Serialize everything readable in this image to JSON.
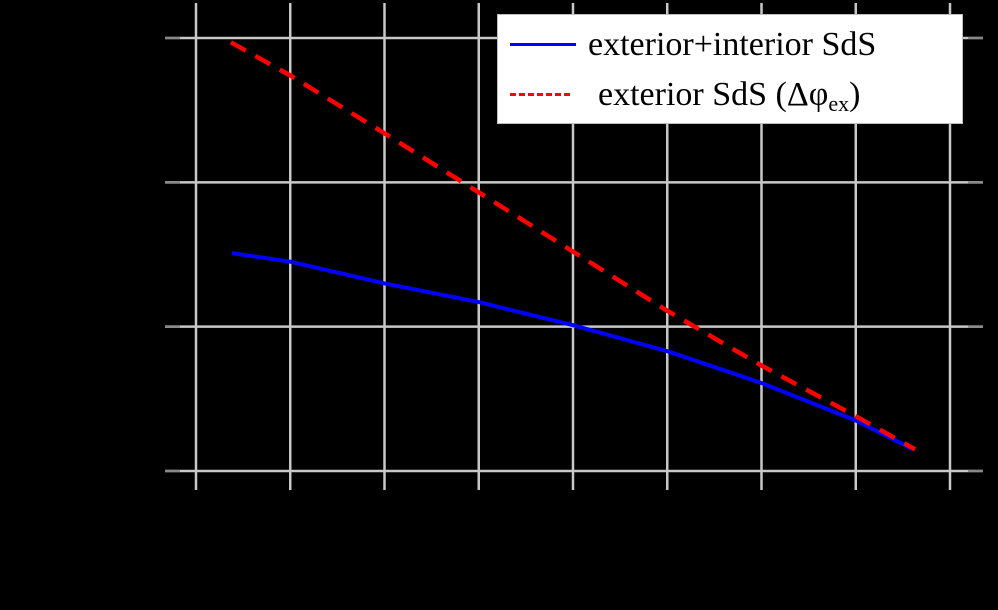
{
  "chart_data": {
    "type": "line",
    "title": "",
    "xlabel": "",
    "ylabel": "",
    "x_tick_labels": [],
    "y_tick_labels": [],
    "note": "Axis tick labels and axis titles are rendered black-on-black (not visible). Values are expressed in grid units: x = vertical gridline index (0-8), y = horizontal gridline index from bottom (0-3).",
    "grid": true,
    "xlim": [
      -0.33,
      8.35
    ],
    "ylim": [
      -0.13,
      3.24
    ],
    "legend_position": "upper right",
    "series": [
      {
        "name": "exterior+interior SdS",
        "style": "solid",
        "color": "#0000ff",
        "x": [
          0.38,
          1.0,
          2.0,
          3.0,
          4.0,
          5.0,
          6.0,
          7.0,
          7.61
        ],
        "y": [
          1.51,
          1.45,
          1.3,
          1.17,
          1.01,
          0.83,
          0.61,
          0.35,
          0.15
        ]
      },
      {
        "name": "exterior SdS (Δφ_ex)",
        "style": "dashed",
        "color": "#ff0000",
        "x": [
          0.37,
          1.0,
          2.0,
          3.0,
          4.0,
          5.0,
          6.0,
          7.0,
          7.63
        ],
        "y": [
          2.97,
          2.74,
          2.34,
          1.93,
          1.52,
          1.11,
          0.73,
          0.38,
          0.15
        ]
      }
    ]
  },
  "legend": {
    "entries": [
      {
        "label": "exterior+interior SdS",
        "color": "#0000ff",
        "style": "solid"
      },
      {
        "label_main": "exterior SdS (Δφ",
        "label_sub": "ex",
        "label_close": ")",
        "color": "#ff0000",
        "style": "dashed"
      }
    ]
  },
  "colors": {
    "background": "#000000",
    "grid": "#c8c8c8",
    "legend_bg": "#ffffff"
  }
}
